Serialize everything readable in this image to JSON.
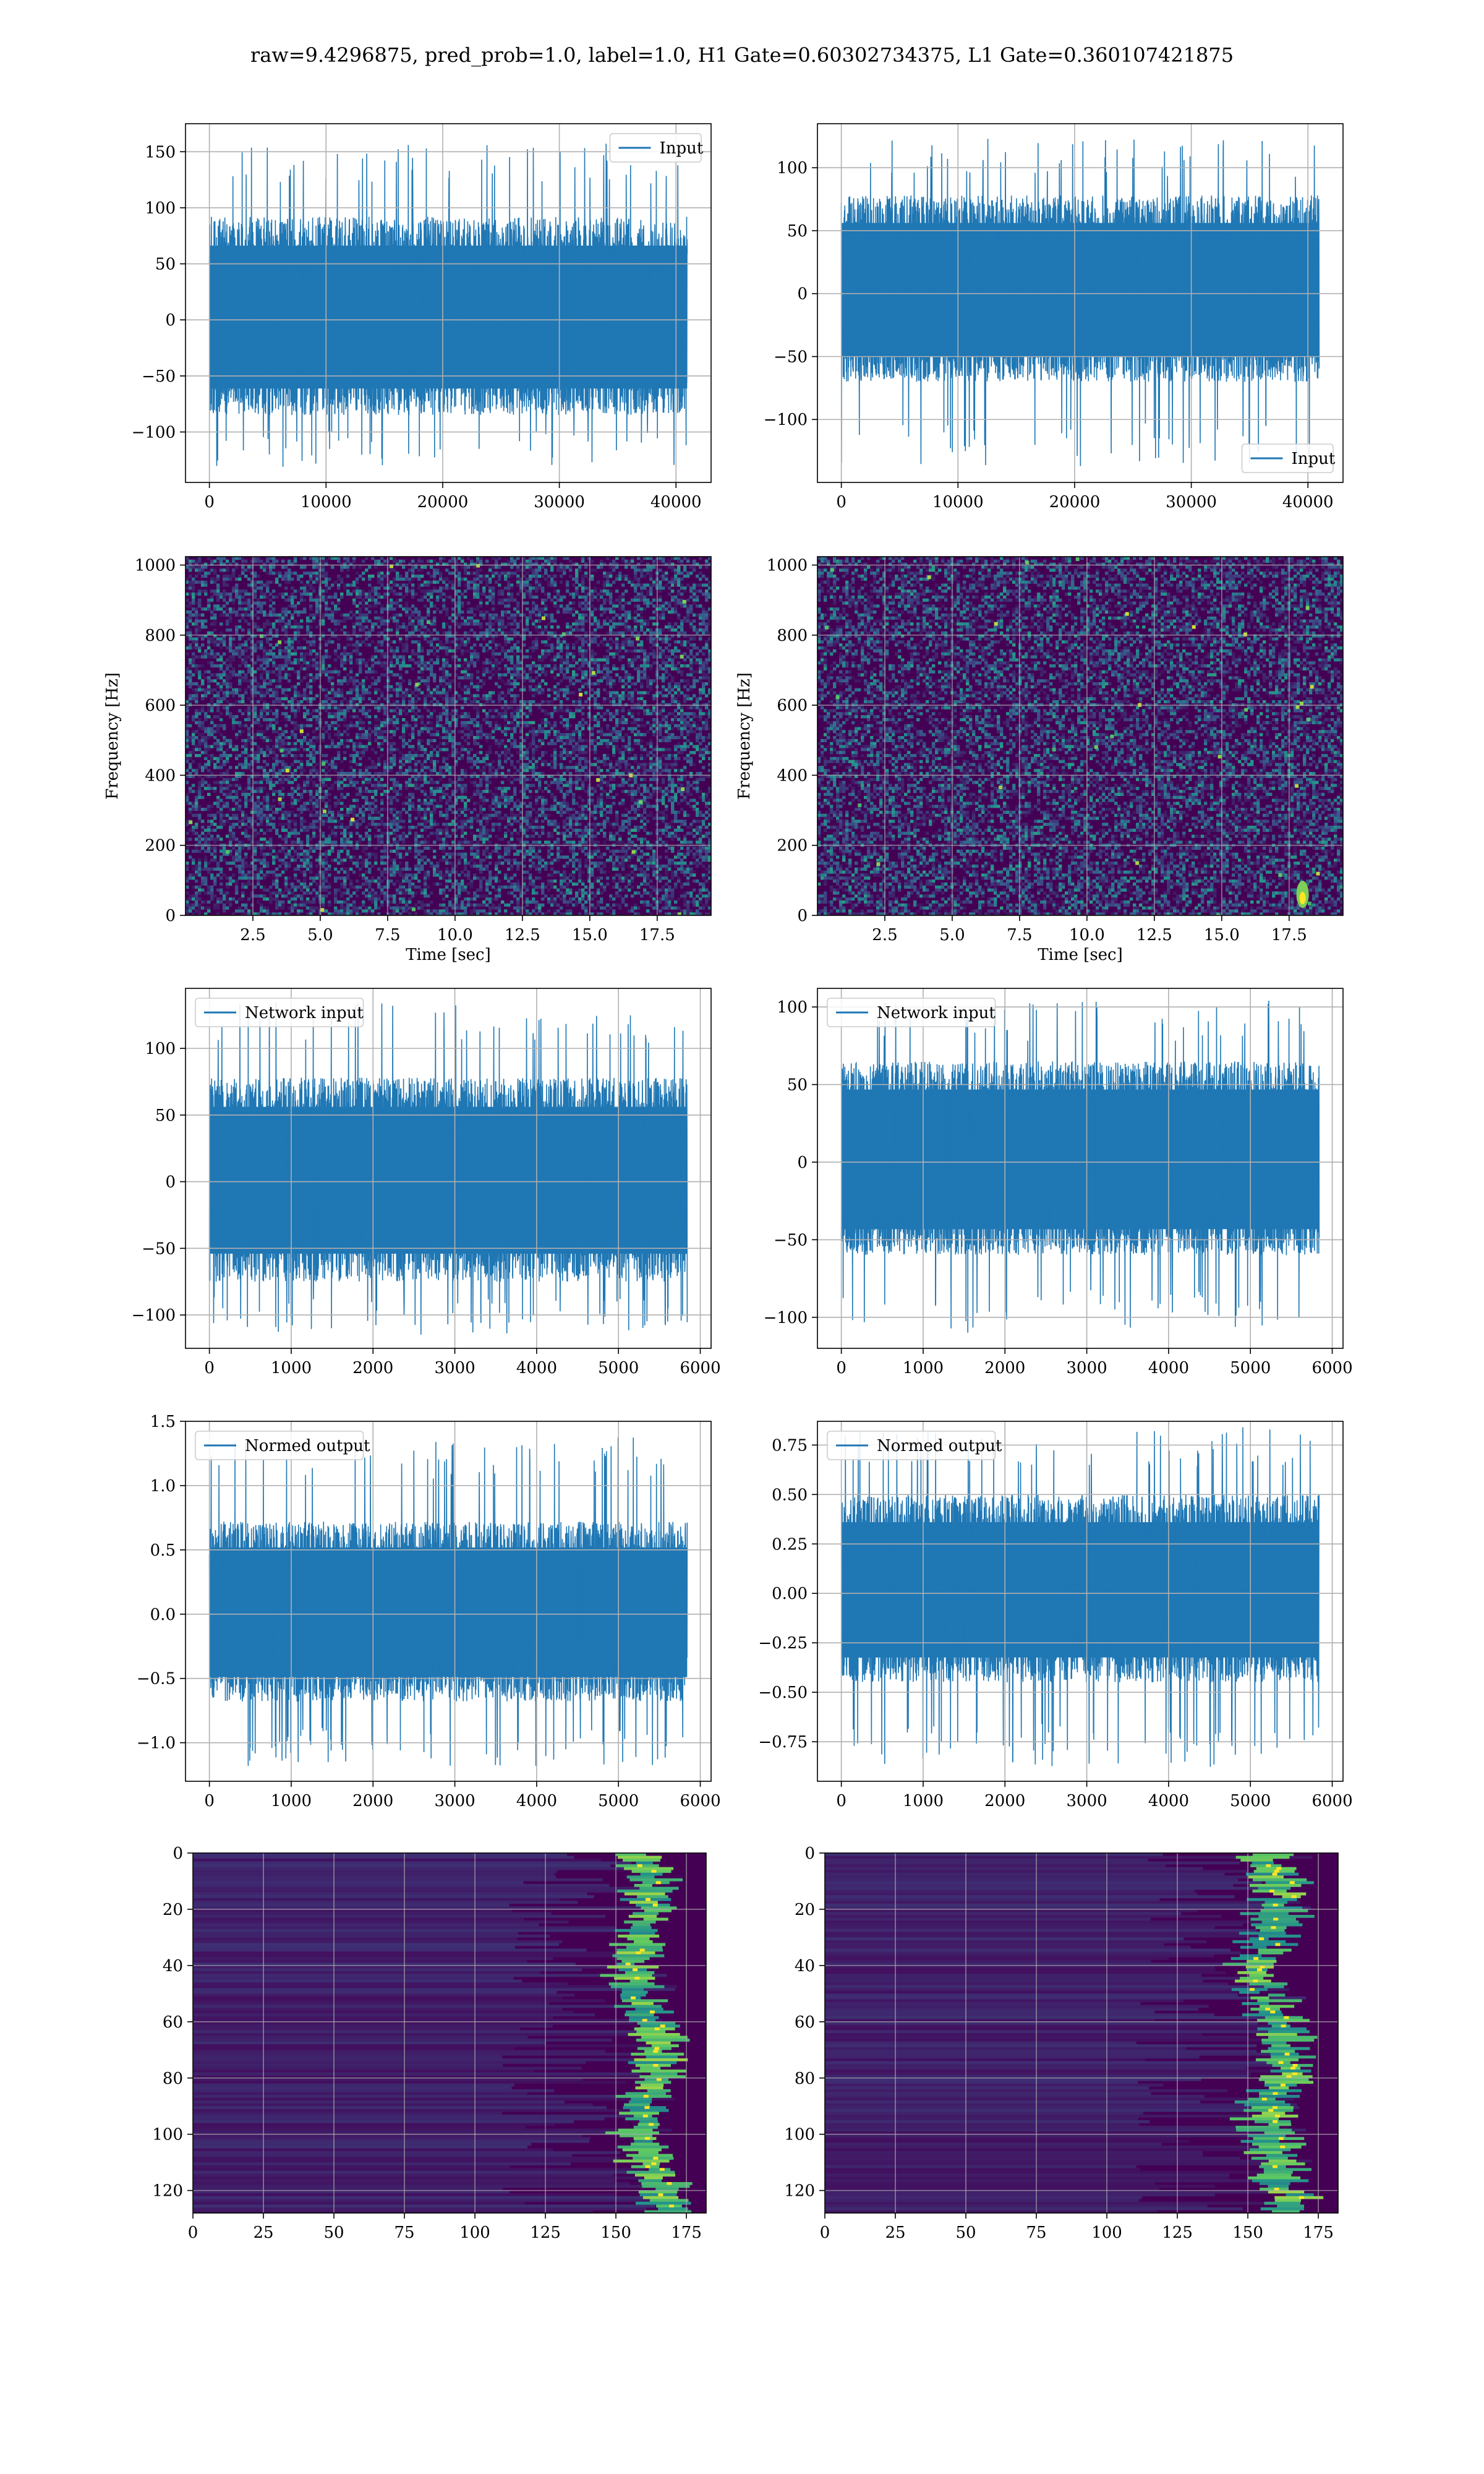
{
  "figure": {
    "suptitle": "raw=9.4296875, pred_prob=1.0, label=1.0, H1 Gate=0.60302734375, L1 Gate=0.360107421875"
  },
  "colors": {
    "series": "#1f77b4",
    "grid": "#b0b0b0",
    "axes": "#000000",
    "viridis_low": "#440154",
    "viridis_mid": "#21918c",
    "viridis_high": "#fde725"
  },
  "chart_data": [
    {
      "id": "h1-input",
      "type": "line",
      "legend": [
        "Input"
      ],
      "legend_position": "upper right",
      "x_range": [
        0,
        40960
      ],
      "xlim": [
        -2048,
        43008
      ],
      "ylim": [
        -145,
        175
      ],
      "xticks": [
        0,
        10000,
        20000,
        30000,
        40000
      ],
      "yticks": [
        -100,
        -50,
        0,
        50,
        100,
        150
      ],
      "grid": true,
      "envelope": {
        "typical_min": -85,
        "typical_max": 92,
        "peak_min": -132,
        "peak_max": 160
      }
    },
    {
      "id": "l1-input",
      "type": "line",
      "legend": [
        "Input"
      ],
      "legend_position": "lower right",
      "x_range": [
        0,
        40960
      ],
      "xlim": [
        -2048,
        43008
      ],
      "ylim": [
        -150,
        135
      ],
      "xticks": [
        0,
        10000,
        20000,
        30000,
        40000
      ],
      "yticks": [
        -100,
        -50,
        0,
        50,
        100
      ],
      "grid": true,
      "envelope": {
        "typical_min": -70,
        "typical_max": 78,
        "peak_min": -137,
        "peak_max": 123
      }
    },
    {
      "id": "h1-spectrogram",
      "type": "heatmap",
      "xlabel": "Time [sec]",
      "ylabel": "Frequency [Hz]",
      "xlim": [
        0,
        19.5
      ],
      "ylim": [
        0,
        1024
      ],
      "xticks": [
        2.5,
        5.0,
        7.5,
        10.0,
        12.5,
        15.0,
        17.5
      ],
      "yticks": [
        0,
        200,
        400,
        600,
        800,
        1000
      ],
      "grid": true,
      "colormap": "viridis"
    },
    {
      "id": "l1-spectrogram",
      "type": "heatmap",
      "xlabel": "Time [sec]",
      "ylabel": "Frequency [Hz]",
      "xlim": [
        0,
        19.5
      ],
      "ylim": [
        0,
        1024
      ],
      "xticks": [
        2.5,
        5.0,
        7.5,
        10.0,
        12.5,
        15.0,
        17.5
      ],
      "yticks": [
        0,
        200,
        400,
        600,
        800,
        1000
      ],
      "grid": true,
      "colormap": "viridis",
      "hotspot": {
        "time": 18.0,
        "freq": 60
      }
    },
    {
      "id": "h1-network-input",
      "type": "line",
      "legend": [
        "Network input"
      ],
      "legend_position": "upper left",
      "x_range": [
        0,
        5840
      ],
      "xlim": [
        -292,
        6132
      ],
      "ylim": [
        -125,
        145
      ],
      "xticks": [
        0,
        1000,
        2000,
        3000,
        4000,
        5000,
        6000
      ],
      "yticks": [
        -100,
        -50,
        0,
        50,
        100
      ],
      "grid": true,
      "envelope": {
        "typical_min": -75,
        "typical_max": 78,
        "peak_min": -115,
        "peak_max": 136
      }
    },
    {
      "id": "l1-network-input",
      "type": "line",
      "legend": [
        "Network input"
      ],
      "legend_position": "upper left",
      "x_range": [
        0,
        5840
      ],
      "xlim": [
        -292,
        6132
      ],
      "ylim": [
        -120,
        112
      ],
      "xticks": [
        0,
        1000,
        2000,
        3000,
        4000,
        5000,
        6000
      ],
      "yticks": [
        -100,
        -50,
        0,
        50,
        100
      ],
      "grid": true,
      "envelope": {
        "typical_min": -60,
        "typical_max": 65,
        "peak_min": -110,
        "peak_max": 104
      }
    },
    {
      "id": "h1-normed-output",
      "type": "line",
      "legend": [
        "Normed output"
      ],
      "legend_position": "upper left",
      "x_range": [
        0,
        5840
      ],
      "xlim": [
        -292,
        6132
      ],
      "ylim": [
        -1.3,
        1.5
      ],
      "xticks": [
        0,
        1000,
        2000,
        3000,
        4000,
        5000,
        6000
      ],
      "yticks": [
        -1.0,
        -0.5,
        0.0,
        0.5,
        1.0,
        1.5
      ],
      "ytick_labels": [
        "−1.0",
        "−0.5",
        "0.0",
        "0.5",
        "1.0",
        "1.5"
      ],
      "grid": true,
      "envelope": {
        "typical_min": -0.68,
        "typical_max": 0.72,
        "peak_min": -1.18,
        "peak_max": 1.4
      }
    },
    {
      "id": "l1-normed-output",
      "type": "line",
      "legend": [
        "Normed output"
      ],
      "legend_position": "upper left",
      "x_range": [
        0,
        5840
      ],
      "xlim": [
        -292,
        6132
      ],
      "ylim": [
        -0.95,
        0.87
      ],
      "xticks": [
        0,
        1000,
        2000,
        3000,
        4000,
        5000,
        6000
      ],
      "yticks": [
        -0.75,
        -0.5,
        -0.25,
        0.0,
        0.25,
        0.5,
        0.75
      ],
      "ytick_labels": [
        "−0.75",
        "−0.50",
        "−0.25",
        "0.00",
        "0.25",
        "0.50",
        "0.75"
      ],
      "grid": true,
      "envelope": {
        "typical_min": -0.45,
        "typical_max": 0.5,
        "peak_min": -0.88,
        "peak_max": 0.85
      }
    },
    {
      "id": "h1-feature-map",
      "type": "heatmap",
      "xlim": [
        0,
        182
      ],
      "ylim": [
        128,
        0
      ],
      "xticks": [
        0,
        25,
        50,
        75,
        100,
        125,
        150,
        175
      ],
      "yticks": [
        0,
        20,
        40,
        60,
        80,
        100,
        120
      ],
      "grid": true,
      "colormap": "viridis",
      "bright_band": {
        "x_from": 148,
        "x_to": 168
      }
    },
    {
      "id": "l1-feature-map",
      "type": "heatmap",
      "xlim": [
        0,
        182
      ],
      "ylim": [
        128,
        0
      ],
      "xticks": [
        0,
        25,
        50,
        75,
        100,
        125,
        150,
        175
      ],
      "yticks": [
        0,
        20,
        40,
        60,
        80,
        100,
        120
      ],
      "grid": true,
      "colormap": "viridis",
      "bright_band": {
        "x_from": 140,
        "x_to": 172
      }
    }
  ]
}
